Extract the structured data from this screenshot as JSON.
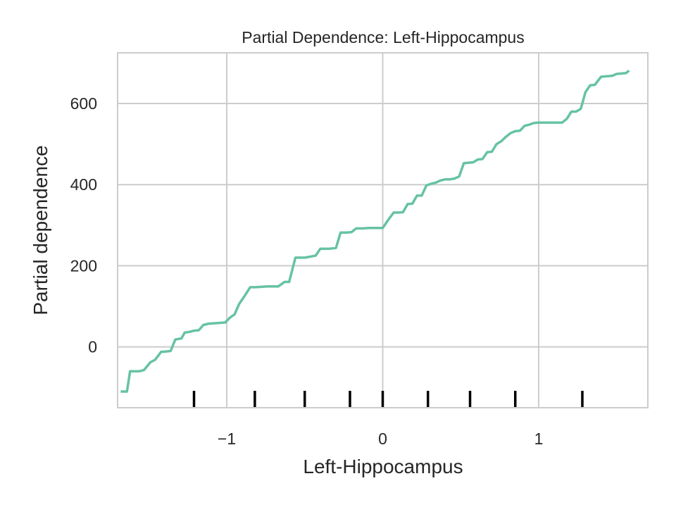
{
  "chart_data": {
    "type": "line",
    "title": "Partial Dependence: Left-Hippocampus",
    "xlabel": "Left-Hippocampus",
    "ylabel": "Partial dependence",
    "xlim": [
      -1.7,
      1.7
    ],
    "ylim": [
      -150,
      725
    ],
    "xticks": [
      -1,
      0,
      1
    ],
    "xtick_labels": [
      "−1",
      "0",
      "1"
    ],
    "yticks": [
      0,
      200,
      400,
      600
    ],
    "ytick_labels": [
      "0",
      "200",
      "400",
      "600"
    ],
    "grid": true,
    "line_color": "#66c2a5",
    "series": [
      {
        "x": [
          -1.68,
          -1.64,
          -1.62,
          -1.56,
          -1.53,
          -1.49,
          -1.46,
          -1.42,
          -1.4,
          -1.36,
          -1.33,
          -1.29,
          -1.27,
          -1.24,
          -1.21,
          -1.18,
          -1.15,
          -1.12,
          -1.09,
          -1.05,
          -1.01,
          -0.98,
          -0.95,
          -0.92,
          -0.89,
          -0.85,
          -0.82,
          -0.78,
          -0.74,
          -0.7,
          -0.67,
          -0.63,
          -0.6,
          -0.56,
          -0.53,
          -0.5,
          -0.47,
          -0.43,
          -0.4,
          -0.37,
          -0.34,
          -0.3,
          -0.27,
          -0.23,
          -0.2,
          -0.17,
          -0.13,
          -0.09,
          -0.07,
          -0.03,
          0.0,
          0.03,
          0.07,
          0.1,
          0.13,
          0.16,
          0.19,
          0.22,
          0.25,
          0.28,
          0.31,
          0.34,
          0.37,
          0.4,
          0.43,
          0.46,
          0.49,
          0.52,
          0.55,
          0.58,
          0.61,
          0.64,
          0.67,
          0.7,
          0.73,
          0.76,
          0.79,
          0.82,
          0.85,
          0.88,
          0.91,
          0.94,
          0.97,
          1.0,
          1.04,
          1.08,
          1.12,
          1.15,
          1.18,
          1.21,
          1.24,
          1.27,
          1.3,
          1.33,
          1.36,
          1.4,
          1.43,
          1.47,
          1.5,
          1.53,
          1.56,
          1.58
        ],
        "y": [
          -110,
          -110,
          -60,
          -60,
          -57,
          -38,
          -32,
          -12,
          -12,
          -10,
          18,
          21,
          35,
          37,
          40,
          41,
          54,
          57,
          58,
          59,
          60,
          72,
          80,
          106,
          123,
          147,
          147,
          148,
          149,
          149,
          149,
          160,
          160,
          220,
          220,
          220,
          222,
          225,
          242,
          242,
          242,
          244,
          282,
          282,
          283,
          292,
          292,
          293,
          293,
          293,
          293,
          310,
          331,
          331,
          332,
          352,
          353,
          373,
          373,
          398,
          402,
          405,
          410,
          413,
          413,
          415,
          420,
          453,
          454,
          455,
          462,
          463,
          480,
          481,
          500,
          507,
          518,
          527,
          532,
          533,
          545,
          548,
          552,
          553,
          553,
          553,
          553,
          553,
          562,
          580,
          580,
          587,
          628,
          645,
          646,
          666,
          667,
          668,
          673,
          674,
          675,
          681
        ]
      }
    ],
    "rug": [
      -1.21,
      -0.82,
      -0.5,
      -0.21,
      0.0,
      0.29,
      0.56,
      0.85,
      1.28
    ]
  }
}
